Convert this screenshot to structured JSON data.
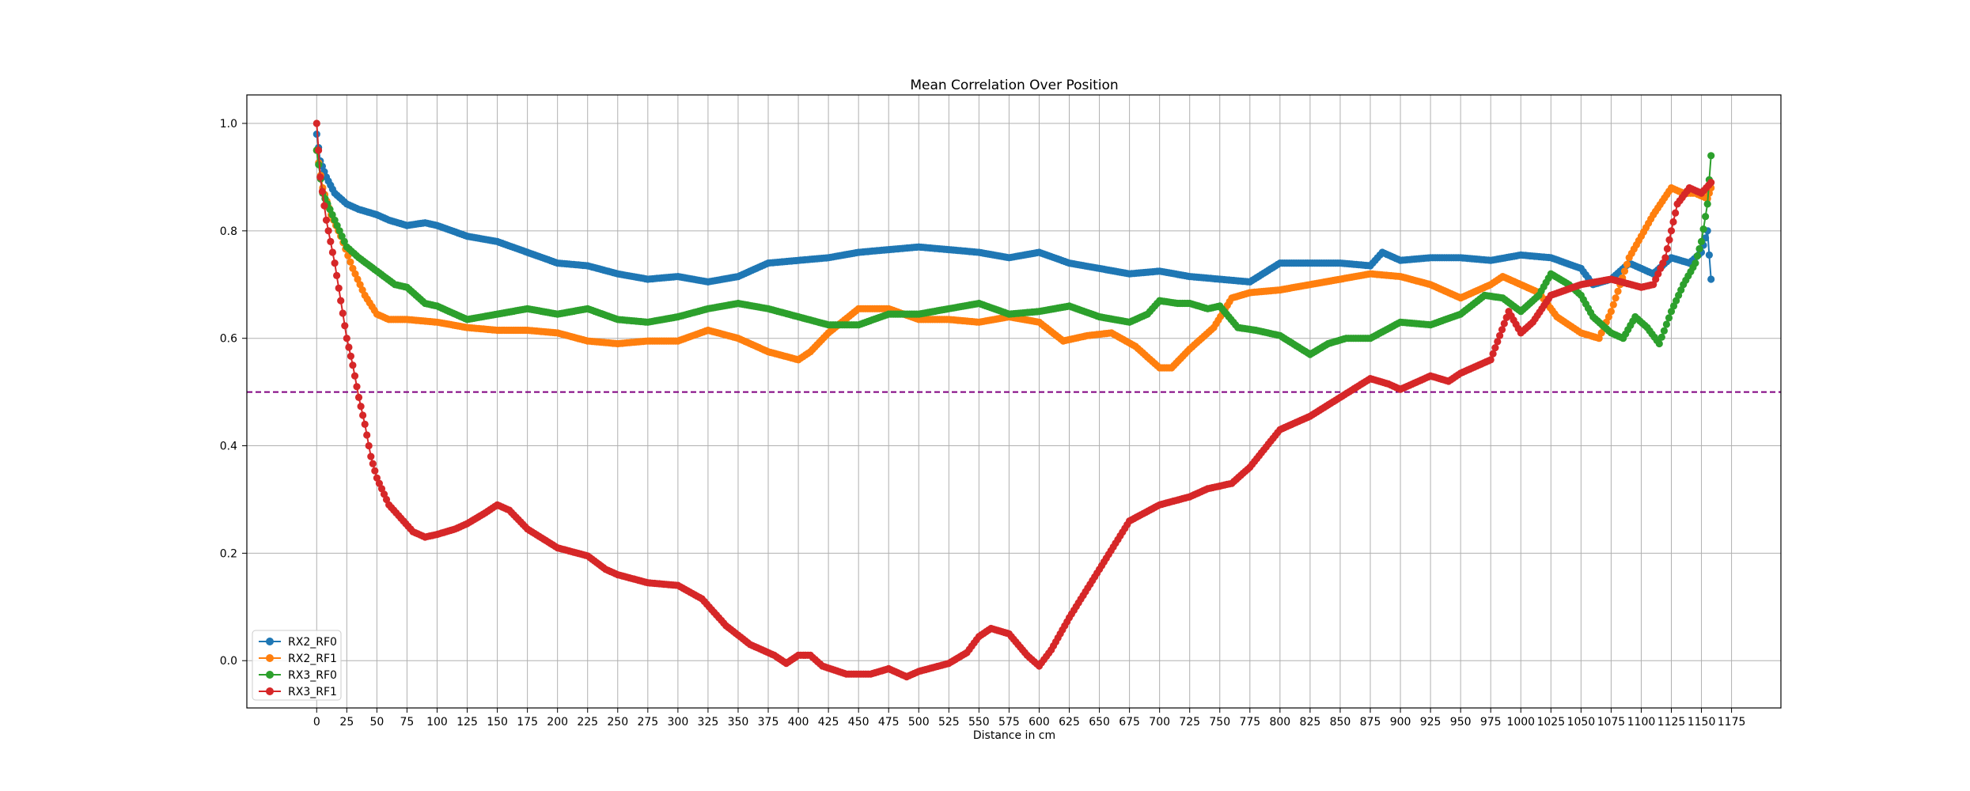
{
  "chart_data": {
    "type": "line",
    "title": "Mean Correlation Over Position",
    "xlabel": "Distance in cm",
    "ylabel": "",
    "xlim": [
      -58,
      1216
    ],
    "ylim": [
      -0.088,
      1.053
    ],
    "xticks": [
      0,
      25,
      50,
      75,
      100,
      125,
      150,
      175,
      200,
      225,
      250,
      275,
      300,
      325,
      350,
      375,
      400,
      425,
      450,
      475,
      500,
      525,
      550,
      575,
      600,
      625,
      650,
      675,
      700,
      725,
      750,
      775,
      800,
      825,
      850,
      875,
      900,
      925,
      950,
      975,
      1000,
      1025,
      1050,
      1075,
      1100,
      1125,
      1150,
      1175
    ],
    "yticks": [
      0.0,
      0.2,
      0.4,
      0.6,
      0.8,
      1.0
    ],
    "grid": true,
    "legend_position": "lower-left",
    "threshold_line": {
      "y": 0.5,
      "color": "#800080",
      "style": "dashed"
    },
    "series": [
      {
        "name": "RX2_RF0",
        "color": "#1f77b4",
        "points": [
          [
            0,
            0.98
          ],
          [
            3,
            0.93
          ],
          [
            8,
            0.9
          ],
          [
            15,
            0.87
          ],
          [
            25,
            0.85
          ],
          [
            35,
            0.84
          ],
          [
            50,
            0.83
          ],
          [
            60,
            0.82
          ],
          [
            75,
            0.81
          ],
          [
            90,
            0.815
          ],
          [
            100,
            0.81
          ],
          [
            125,
            0.79
          ],
          [
            150,
            0.78
          ],
          [
            175,
            0.76
          ],
          [
            200,
            0.74
          ],
          [
            225,
            0.735
          ],
          [
            250,
            0.72
          ],
          [
            275,
            0.71
          ],
          [
            300,
            0.715
          ],
          [
            325,
            0.705
          ],
          [
            350,
            0.715
          ],
          [
            375,
            0.74
          ],
          [
            400,
            0.745
          ],
          [
            425,
            0.75
          ],
          [
            450,
            0.76
          ],
          [
            475,
            0.765
          ],
          [
            500,
            0.77
          ],
          [
            525,
            0.765
          ],
          [
            550,
            0.76
          ],
          [
            575,
            0.75
          ],
          [
            600,
            0.76
          ],
          [
            625,
            0.74
          ],
          [
            650,
            0.73
          ],
          [
            675,
            0.72
          ],
          [
            700,
            0.725
          ],
          [
            725,
            0.715
          ],
          [
            750,
            0.71
          ],
          [
            775,
            0.705
          ],
          [
            800,
            0.74
          ],
          [
            825,
            0.74
          ],
          [
            850,
            0.74
          ],
          [
            875,
            0.735
          ],
          [
            885,
            0.76
          ],
          [
            900,
            0.745
          ],
          [
            925,
            0.75
          ],
          [
            950,
            0.75
          ],
          [
            975,
            0.745
          ],
          [
            1000,
            0.755
          ],
          [
            1025,
            0.75
          ],
          [
            1050,
            0.73
          ],
          [
            1060,
            0.7
          ],
          [
            1075,
            0.71
          ],
          [
            1090,
            0.74
          ],
          [
            1100,
            0.73
          ],
          [
            1110,
            0.72
          ],
          [
            1125,
            0.75
          ],
          [
            1140,
            0.74
          ],
          [
            1150,
            0.76
          ],
          [
            1155,
            0.8
          ],
          [
            1158,
            0.71
          ]
        ]
      },
      {
        "name": "RX2_RF1",
        "color": "#ff7f0e",
        "points": [
          [
            0,
            0.95
          ],
          [
            5,
            0.88
          ],
          [
            12,
            0.83
          ],
          [
            20,
            0.79
          ],
          [
            30,
            0.73
          ],
          [
            40,
            0.68
          ],
          [
            50,
            0.645
          ],
          [
            60,
            0.635
          ],
          [
            75,
            0.635
          ],
          [
            100,
            0.63
          ],
          [
            125,
            0.62
          ],
          [
            150,
            0.615
          ],
          [
            175,
            0.615
          ],
          [
            200,
            0.61
          ],
          [
            225,
            0.595
          ],
          [
            250,
            0.59
          ],
          [
            275,
            0.595
          ],
          [
            300,
            0.595
          ],
          [
            325,
            0.615
          ],
          [
            350,
            0.6
          ],
          [
            375,
            0.575
          ],
          [
            400,
            0.56
          ],
          [
            410,
            0.575
          ],
          [
            425,
            0.61
          ],
          [
            450,
            0.655
          ],
          [
            475,
            0.655
          ],
          [
            500,
            0.635
          ],
          [
            525,
            0.635
          ],
          [
            550,
            0.63
          ],
          [
            575,
            0.64
          ],
          [
            600,
            0.63
          ],
          [
            620,
            0.595
          ],
          [
            640,
            0.605
          ],
          [
            660,
            0.61
          ],
          [
            680,
            0.585
          ],
          [
            700,
            0.545
          ],
          [
            710,
            0.545
          ],
          [
            725,
            0.58
          ],
          [
            745,
            0.62
          ],
          [
            760,
            0.675
          ],
          [
            775,
            0.685
          ],
          [
            800,
            0.69
          ],
          [
            825,
            0.7
          ],
          [
            850,
            0.71
          ],
          [
            875,
            0.72
          ],
          [
            900,
            0.715
          ],
          [
            925,
            0.7
          ],
          [
            950,
            0.675
          ],
          [
            975,
            0.7
          ],
          [
            985,
            0.715
          ],
          [
            1000,
            0.7
          ],
          [
            1015,
            0.685
          ],
          [
            1030,
            0.64
          ],
          [
            1050,
            0.61
          ],
          [
            1065,
            0.6
          ],
          [
            1075,
            0.65
          ],
          [
            1090,
            0.75
          ],
          [
            1100,
            0.79
          ],
          [
            1110,
            0.83
          ],
          [
            1125,
            0.88
          ],
          [
            1135,
            0.87
          ],
          [
            1145,
            0.87
          ],
          [
            1155,
            0.86
          ],
          [
            1158,
            0.88
          ]
        ]
      },
      {
        "name": "RX3_RF0",
        "color": "#2ca02c",
        "points": [
          [
            0,
            0.95
          ],
          [
            5,
            0.87
          ],
          [
            15,
            0.82
          ],
          [
            25,
            0.77
          ],
          [
            35,
            0.75
          ],
          [
            50,
            0.725
          ],
          [
            65,
            0.7
          ],
          [
            75,
            0.695
          ],
          [
            90,
            0.665
          ],
          [
            100,
            0.66
          ],
          [
            125,
            0.635
          ],
          [
            150,
            0.645
          ],
          [
            175,
            0.655
          ],
          [
            200,
            0.645
          ],
          [
            225,
            0.655
          ],
          [
            250,
            0.635
          ],
          [
            275,
            0.63
          ],
          [
            300,
            0.64
          ],
          [
            325,
            0.655
          ],
          [
            350,
            0.665
          ],
          [
            375,
            0.655
          ],
          [
            400,
            0.64
          ],
          [
            425,
            0.625
          ],
          [
            450,
            0.625
          ],
          [
            475,
            0.645
          ],
          [
            500,
            0.645
          ],
          [
            525,
            0.655
          ],
          [
            550,
            0.665
          ],
          [
            575,
            0.645
          ],
          [
            600,
            0.65
          ],
          [
            625,
            0.66
          ],
          [
            650,
            0.64
          ],
          [
            675,
            0.63
          ],
          [
            690,
            0.645
          ],
          [
            700,
            0.67
          ],
          [
            715,
            0.665
          ],
          [
            725,
            0.665
          ],
          [
            740,
            0.655
          ],
          [
            750,
            0.66
          ],
          [
            765,
            0.62
          ],
          [
            780,
            0.615
          ],
          [
            800,
            0.605
          ],
          [
            825,
            0.57
          ],
          [
            840,
            0.59
          ],
          [
            855,
            0.6
          ],
          [
            875,
            0.6
          ],
          [
            900,
            0.63
          ],
          [
            925,
            0.625
          ],
          [
            950,
            0.645
          ],
          [
            970,
            0.68
          ],
          [
            985,
            0.675
          ],
          [
            1000,
            0.65
          ],
          [
            1015,
            0.68
          ],
          [
            1025,
            0.72
          ],
          [
            1040,
            0.7
          ],
          [
            1050,
            0.68
          ],
          [
            1060,
            0.64
          ],
          [
            1075,
            0.61
          ],
          [
            1085,
            0.6
          ],
          [
            1095,
            0.64
          ],
          [
            1105,
            0.62
          ],
          [
            1115,
            0.59
          ],
          [
            1125,
            0.65
          ],
          [
            1135,
            0.7
          ],
          [
            1145,
            0.74
          ],
          [
            1150,
            0.78
          ],
          [
            1155,
            0.85
          ],
          [
            1158,
            0.94
          ]
        ]
      },
      {
        "name": "RX3_RF1",
        "color": "#d62728",
        "points": [
          [
            0,
            1.0
          ],
          [
            3,
            0.9
          ],
          [
            8,
            0.82
          ],
          [
            15,
            0.74
          ],
          [
            20,
            0.67
          ],
          [
            25,
            0.6
          ],
          [
            30,
            0.55
          ],
          [
            35,
            0.49
          ],
          [
            40,
            0.44
          ],
          [
            45,
            0.38
          ],
          [
            50,
            0.34
          ],
          [
            60,
            0.29
          ],
          [
            70,
            0.265
          ],
          [
            80,
            0.24
          ],
          [
            90,
            0.23
          ],
          [
            100,
            0.235
          ],
          [
            115,
            0.245
          ],
          [
            125,
            0.255
          ],
          [
            140,
            0.275
          ],
          [
            150,
            0.29
          ],
          [
            160,
            0.28
          ],
          [
            175,
            0.245
          ],
          [
            200,
            0.21
          ],
          [
            225,
            0.195
          ],
          [
            240,
            0.17
          ],
          [
            250,
            0.16
          ],
          [
            275,
            0.145
          ],
          [
            300,
            0.14
          ],
          [
            320,
            0.115
          ],
          [
            340,
            0.065
          ],
          [
            360,
            0.03
          ],
          [
            380,
            0.01
          ],
          [
            390,
            -0.005
          ],
          [
            400,
            0.01
          ],
          [
            410,
            0.01
          ],
          [
            420,
            -0.01
          ],
          [
            440,
            -0.025
          ],
          [
            460,
            -0.025
          ],
          [
            475,
            -0.015
          ],
          [
            490,
            -0.03
          ],
          [
            500,
            -0.02
          ],
          [
            525,
            -0.005
          ],
          [
            540,
            0.015
          ],
          [
            550,
            0.045
          ],
          [
            560,
            0.06
          ],
          [
            575,
            0.05
          ],
          [
            590,
            0.01
          ],
          [
            600,
            -0.01
          ],
          [
            610,
            0.02
          ],
          [
            625,
            0.08
          ],
          [
            650,
            0.17
          ],
          [
            675,
            0.26
          ],
          [
            700,
            0.29
          ],
          [
            725,
            0.305
          ],
          [
            740,
            0.32
          ],
          [
            760,
            0.33
          ],
          [
            775,
            0.36
          ],
          [
            800,
            0.43
          ],
          [
            825,
            0.455
          ],
          [
            850,
            0.49
          ],
          [
            875,
            0.525
          ],
          [
            890,
            0.515
          ],
          [
            900,
            0.505
          ],
          [
            925,
            0.53
          ],
          [
            940,
            0.52
          ],
          [
            950,
            0.535
          ],
          [
            975,
            0.56
          ],
          [
            990,
            0.65
          ],
          [
            1000,
            0.61
          ],
          [
            1010,
            0.63
          ],
          [
            1025,
            0.68
          ],
          [
            1050,
            0.7
          ],
          [
            1075,
            0.71
          ],
          [
            1100,
            0.695
          ],
          [
            1110,
            0.7
          ],
          [
            1120,
            0.75
          ],
          [
            1125,
            0.8
          ],
          [
            1130,
            0.85
          ],
          [
            1140,
            0.88
          ],
          [
            1150,
            0.87
          ],
          [
            1158,
            0.89
          ]
        ]
      }
    ]
  }
}
